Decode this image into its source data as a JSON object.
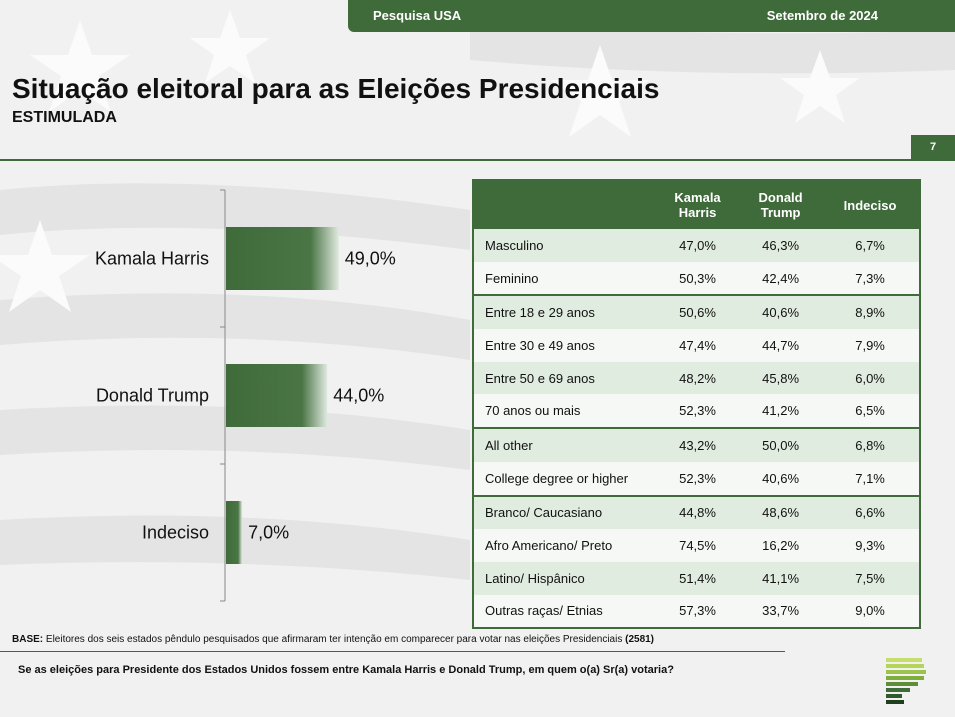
{
  "header": {
    "left": "Pesquisa USA",
    "right": "Setembro de 2024"
  },
  "title": "Situação eleitoral para as Eleições Presidenciais",
  "subtitle": "ESTIMULADA",
  "page_number": "7",
  "colors": {
    "accent": "#3f6a3a",
    "row_light": "#e1ece0",
    "row_lighter": "#f5f8f4"
  },
  "chart_data": {
    "type": "bar",
    "orientation": "horizontal",
    "categories": [
      "Kamala Harris",
      "Donald Trump",
      "Indeciso"
    ],
    "values": [
      49.0,
      44.0,
      7.0
    ],
    "value_labels": [
      "49,0%",
      "44,0%",
      "7,0%"
    ],
    "unit": "%",
    "title": "",
    "xlabel": "",
    "ylabel": "",
    "xlim": [
      0,
      100
    ]
  },
  "table": {
    "headers": [
      "",
      "Kamala\nHarris",
      "Donald\nTrump",
      "Indeciso"
    ],
    "rows": [
      {
        "label": "Masculino",
        "values": [
          "47,0%",
          "46,3%",
          "6,7%"
        ]
      },
      {
        "label": "Feminino",
        "values": [
          "50,3%",
          "42,4%",
          "7,3%"
        ]
      },
      {
        "label": "Entre 18 e 29 anos",
        "values": [
          "50,6%",
          "40,6%",
          "8,9%"
        ],
        "group_start": true
      },
      {
        "label": "Entre 30 e 49 anos",
        "values": [
          "47,4%",
          "44,7%",
          "7,9%"
        ]
      },
      {
        "label": "Entre 50 e 69 anos",
        "values": [
          "48,2%",
          "45,8%",
          "6,0%"
        ]
      },
      {
        "label": "70 anos ou mais",
        "values": [
          "52,3%",
          "41,2%",
          "6,5%"
        ]
      },
      {
        "label": "All other",
        "values": [
          "43,2%",
          "50,0%",
          "6,8%"
        ],
        "group_start": true
      },
      {
        "label": "College degree or higher",
        "values": [
          "52,3%",
          "40,6%",
          "7,1%"
        ]
      },
      {
        "label": "Branco/ Caucasiano",
        "values": [
          "44,8%",
          "48,6%",
          "6,6%"
        ],
        "group_start": true
      },
      {
        "label": "Afro Americano/ Preto",
        "values": [
          "74,5%",
          "16,2%",
          "9,3%"
        ]
      },
      {
        "label": "Latino/ Hispânico",
        "values": [
          "51,4%",
          "41,1%",
          "7,5%"
        ]
      },
      {
        "label": "Outras raças/ Etnias",
        "values": [
          "57,3%",
          "33,7%",
          "9,0%"
        ]
      }
    ]
  },
  "footer": {
    "base_label": "BASE:",
    "base_text": " Eleitores dos seis estados pêndulo pesquisados que afirmaram ter intenção em comparecer para votar nas eleições Presidenciais ",
    "base_n": "(2581)",
    "question": "Se as eleições para Presidente dos Estados Unidos fossem entre Kamala Harris e Donald Trump, em quem o(a) Sr(a) votaria?"
  }
}
